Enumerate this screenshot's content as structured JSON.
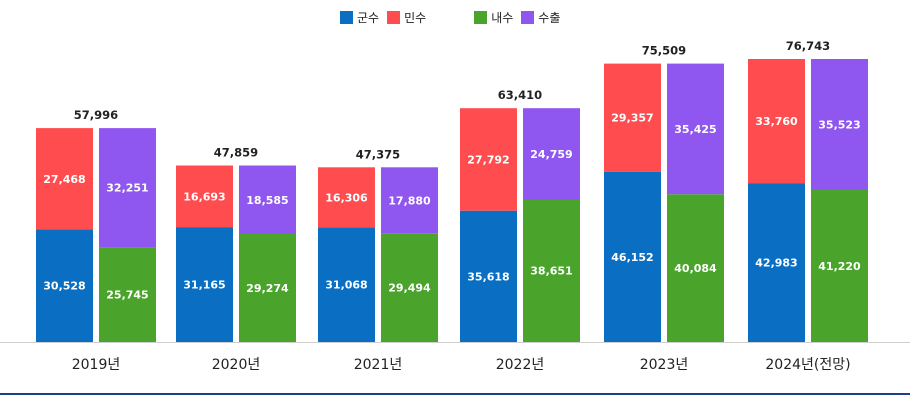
{
  "legend": {
    "military": "군수",
    "civil": "민수",
    "domestic": "내수",
    "export": "수출"
  },
  "colors": {
    "military": "#0a6fc2",
    "civil": "#ff4d4f",
    "domestic": "#4aa42c",
    "export": "#8f57ef"
  },
  "chart_data": {
    "type": "bar",
    "stacked": true,
    "title": "",
    "xlabel": "",
    "ylabel": "",
    "ylim": [
      0,
      80000
    ],
    "categories": [
      "2019년",
      "2020년",
      "2021년",
      "2022년",
      "2023년",
      "2024년(전망)"
    ],
    "totals": [
      "57,996",
      "47,859",
      "47,375",
      "63,410",
      "75,509",
      "76,743"
    ],
    "left_stack": [
      {
        "name": "군수",
        "values": [
          30528,
          31165,
          31068,
          35618,
          46152,
          42983
        ]
      },
      {
        "name": "민수",
        "values": [
          27468,
          16693,
          16306,
          27792,
          29357,
          33760
        ]
      }
    ],
    "right_stack": [
      {
        "name": "내수",
        "values": [
          25745,
          29274,
          29494,
          38651,
          40084,
          41220
        ]
      },
      {
        "name": "수출",
        "values": [
          32251,
          18585,
          17880,
          24759,
          35425,
          35523
        ]
      }
    ]
  }
}
